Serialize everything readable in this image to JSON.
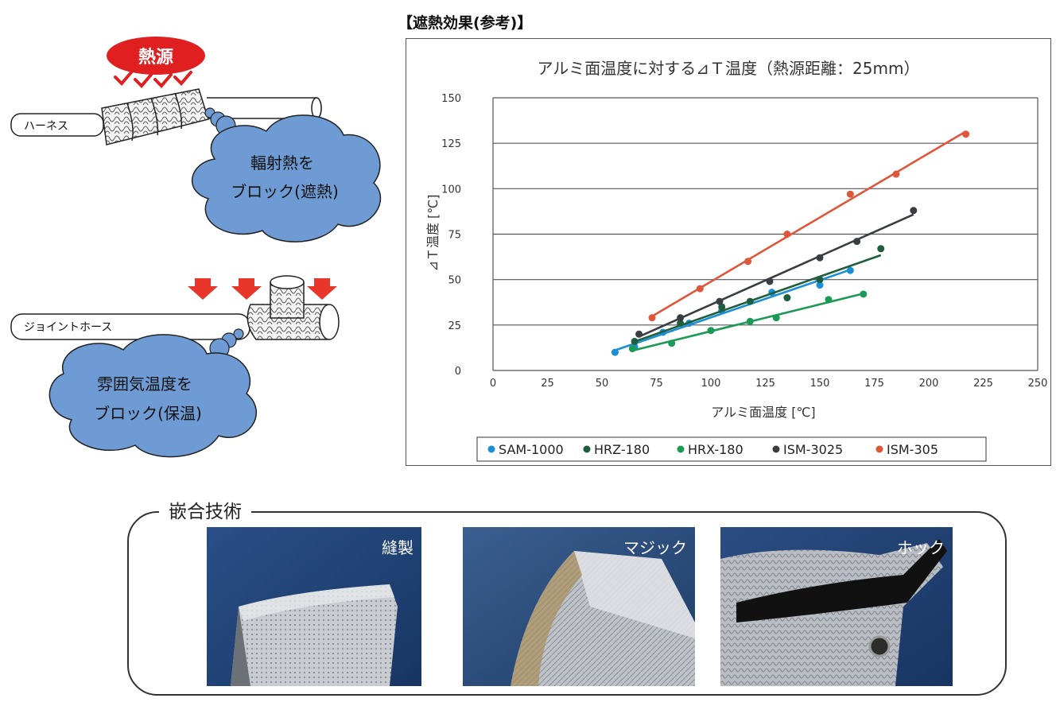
{
  "heading": "【遮熱効果(参考)】",
  "diagram": {
    "heat_source_label": "熱源",
    "harness_label": "ハーネス",
    "cloud1_line1": "輻射熱を",
    "cloud1_line2": "ブロック(遮熱)",
    "joint_hose_label": "ジョイントホース",
    "cloud2_line1": "雰囲気温度を",
    "cloud2_line2": "ブロック(保温)",
    "colors": {
      "cloud": "#6f9bd4",
      "heat": "#e02020",
      "arrow": "#e8362a"
    }
  },
  "chart_data": {
    "type": "scatter",
    "title": "アルミ面温度に対する⊿Ｔ温度（熱源距離：25mm）",
    "xlabel": "アルミ面温度 [℃]",
    "ylabel": "⊿Ｔ温度 [℃]",
    "xlim": [
      0,
      250
    ],
    "ylim": [
      0,
      150
    ],
    "x_ticks": [
      0,
      25,
      50,
      75,
      100,
      125,
      150,
      175,
      200,
      225,
      250
    ],
    "y_ticks": [
      0,
      25,
      50,
      75,
      100,
      125,
      150
    ],
    "grid": "horizontal",
    "legend_position": "bottom",
    "series": [
      {
        "name": "SAM-1000",
        "color": "#1a8fd6",
        "trendline": true,
        "points": [
          [
            56,
            10
          ],
          [
            65,
            13
          ],
          [
            78,
            21
          ],
          [
            90,
            26
          ],
          [
            105,
            33
          ],
          [
            128,
            43
          ],
          [
            150,
            47
          ],
          [
            164,
            55
          ]
        ]
      },
      {
        "name": "HRZ-180",
        "color": "#1f5e3c",
        "trendline": true,
        "points": [
          [
            65,
            16
          ],
          [
            86,
            26
          ],
          [
            105,
            35
          ],
          [
            118,
            38
          ],
          [
            135,
            40
          ],
          [
            150,
            50
          ],
          [
            178,
            67
          ]
        ]
      },
      {
        "name": "HRX-180",
        "color": "#1a9a55",
        "trendline": true,
        "points": [
          [
            64,
            12
          ],
          [
            82,
            15
          ],
          [
            100,
            22
          ],
          [
            118,
            27
          ],
          [
            130,
            29
          ],
          [
            154,
            39
          ],
          [
            170,
            42
          ]
        ]
      },
      {
        "name": "ISM-3025",
        "color": "#3a3d42",
        "trendline": true,
        "points": [
          [
            67,
            20
          ],
          [
            86,
            29
          ],
          [
            104,
            38
          ],
          [
            127,
            49
          ],
          [
            150,
            62
          ],
          [
            167,
            71
          ],
          [
            193,
            88
          ]
        ]
      },
      {
        "name": "ISM-305",
        "color": "#e0563a",
        "trendline": true,
        "points": [
          [
            73,
            29
          ],
          [
            95,
            45
          ],
          [
            117,
            60
          ],
          [
            135,
            75
          ],
          [
            164,
            97
          ],
          [
            185,
            108
          ],
          [
            217,
            130
          ]
        ]
      }
    ]
  },
  "technology": {
    "title": "嵌合技術",
    "photos": [
      {
        "caption": "縫製"
      },
      {
        "caption": "マジック"
      },
      {
        "caption": "ホック"
      }
    ]
  }
}
